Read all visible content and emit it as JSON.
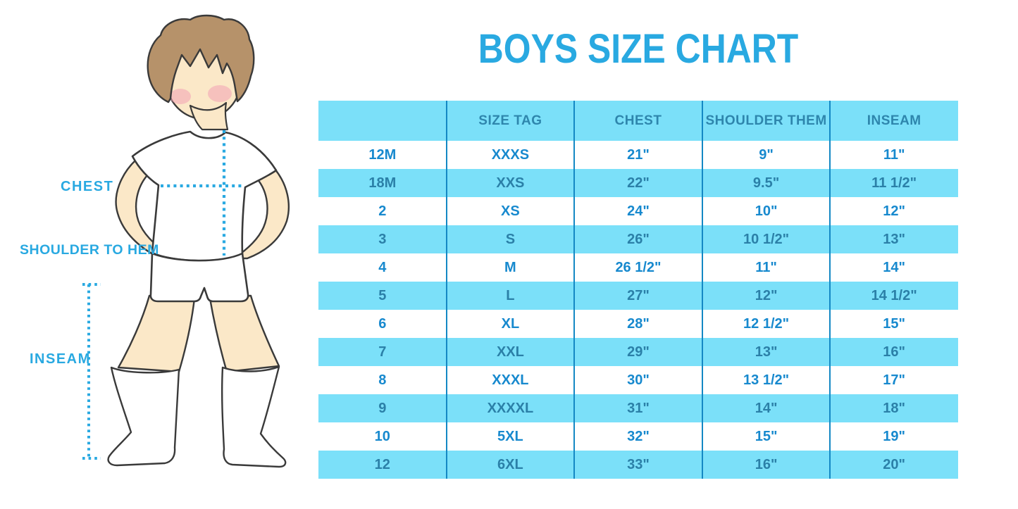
{
  "title": "BOYS SIZE CHART",
  "colors": {
    "accent": "#29A9E1",
    "band": "#7BE0F9",
    "divider": "#1488C4",
    "header_text": "#2E86AD",
    "row_text": "#1789CE",
    "band_row_text": "#2B80A8",
    "outline": "#3A3A3A",
    "skin": "#FBE8C8",
    "hair": "#B6926A",
    "cheek": "#F2A0B5"
  },
  "figure": {
    "labels": {
      "chest": "CHEST",
      "shoulder_to_hem": "SHOULDER TO HEM",
      "inseam": "INSEAM"
    }
  },
  "chart_data": {
    "type": "table",
    "title": "BOYS SIZE CHART",
    "columns": [
      "",
      "SIZE TAG",
      "CHEST",
      "SHOULDER THEM",
      "INSEAM"
    ],
    "rows": [
      [
        "12M",
        "XXXS",
        "21\"",
        "9\"",
        "11\""
      ],
      [
        "18M",
        "XXS",
        "22\"",
        "9.5\"",
        "11 1/2\""
      ],
      [
        "2",
        "XS",
        "24\"",
        "10\"",
        "12\""
      ],
      [
        "3",
        "S",
        "26\"",
        "10 1/2\"",
        "13\""
      ],
      [
        "4",
        "M",
        "26 1/2\"",
        "11\"",
        "14\""
      ],
      [
        "5",
        "L",
        "27\"",
        "12\"",
        "14 1/2\""
      ],
      [
        "6",
        "XL",
        "28\"",
        "12 1/2\"",
        "15\""
      ],
      [
        "7",
        "XXL",
        "29\"",
        "13\"",
        "16\""
      ],
      [
        "8",
        "XXXL",
        "30\"",
        "13 1/2\"",
        "17\""
      ],
      [
        "9",
        "XXXXL",
        "31\"",
        "14\"",
        "18\""
      ],
      [
        "10",
        "5XL",
        "32\"",
        "15\"",
        "19\""
      ],
      [
        "12",
        "6XL",
        "33\"",
        "16\"",
        "20\""
      ]
    ]
  }
}
